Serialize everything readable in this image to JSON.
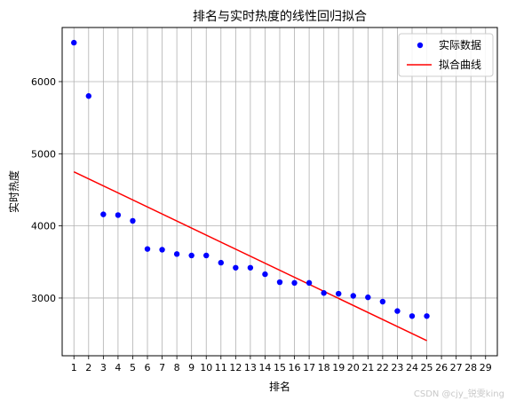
{
  "chart_data": {
    "type": "scatter",
    "title": "排名与实时热度的线性回归拟合",
    "xlabel": "排名",
    "ylabel": "实时热度",
    "xlim": [
      0.2,
      29.8
    ],
    "ylim": [
      2200,
      6750
    ],
    "x_ticks": [
      1,
      2,
      3,
      4,
      5,
      6,
      7,
      8,
      9,
      10,
      11,
      12,
      13,
      14,
      15,
      16,
      17,
      18,
      19,
      20,
      21,
      22,
      23,
      24,
      25,
      26,
      27,
      28,
      29
    ],
    "y_ticks": [
      3000,
      4000,
      5000,
      6000
    ],
    "grid": true,
    "legend_position": "top-right",
    "series": [
      {
        "name": "实际数据",
        "kind": "scatter",
        "color": "#0000ff",
        "x": [
          1,
          2,
          3,
          4,
          5,
          6,
          7,
          8,
          9,
          10,
          11,
          12,
          13,
          14,
          15,
          16,
          17,
          18,
          19,
          20,
          21,
          22,
          23,
          24,
          25
        ],
        "y": [
          6540,
          5800,
          4160,
          4150,
          4070,
          3680,
          3670,
          3610,
          3590,
          3590,
          3490,
          3420,
          3420,
          3330,
          3220,
          3210,
          3210,
          3070,
          3060,
          3030,
          3010,
          2950,
          2820,
          2750,
          2750
        ]
      },
      {
        "name": "拟合曲线",
        "kind": "line",
        "color": "#ff0000",
        "x": [
          1,
          25
        ],
        "y": [
          4750,
          2410
        ]
      }
    ]
  },
  "watermark": "CSDN @cjy_锐雯king"
}
